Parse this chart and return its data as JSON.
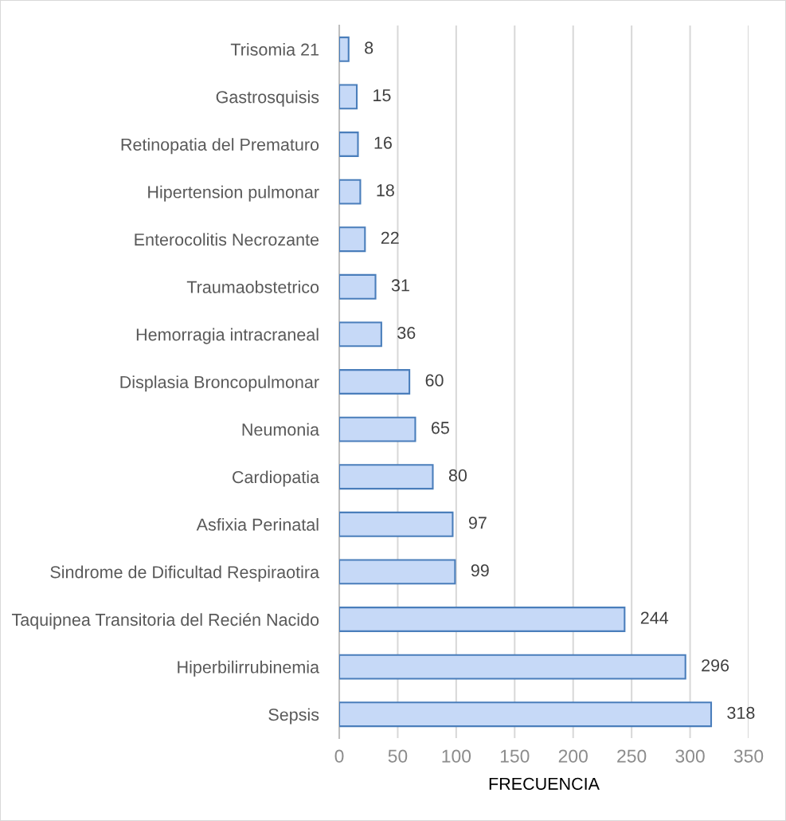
{
  "chart_data": {
    "type": "bar",
    "orientation": "horizontal",
    "xlabel": "FRECUENCIA",
    "categories": [
      "Trisomia 21",
      "Gastrosquisis",
      "Retinopatia del Prematuro",
      "Hipertension pulmonar",
      "Enterocolitis Necrozante",
      "Traumaobstetrico",
      "Hemorragia intracraneal",
      "Displasia Broncopulmonar",
      "Neumonia",
      "Cardiopatia",
      "Asfixia Perinatal",
      "Sindrome de Dificultad Respiraotira",
      "Taquipnea Transitoria del Recién Nacido",
      "Hiperbilirrubinemia",
      "Sepsis"
    ],
    "values": [
      8,
      15,
      16,
      18,
      22,
      31,
      36,
      60,
      65,
      80,
      97,
      99,
      244,
      296,
      318
    ],
    "color": "#c6d9f7",
    "xlim": [
      0,
      350
    ],
    "xticks": [
      0,
      50,
      100,
      150,
      200,
      250,
      300,
      350
    ],
    "grid": "x",
    "data_labels": true
  }
}
